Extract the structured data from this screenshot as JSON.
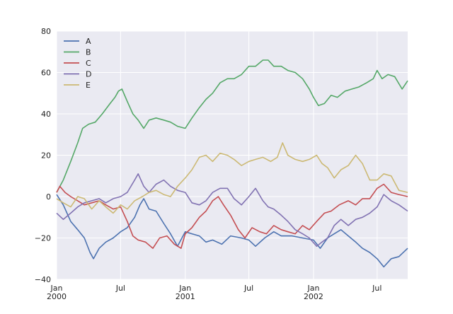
{
  "chart_data": {
    "type": "line",
    "title": "",
    "xlabel": "",
    "ylabel": "",
    "ylim": [
      -40,
      80
    ],
    "xlim": [
      "2000-01-01",
      "2002-09-26"
    ],
    "grid": true,
    "legend_position": "top-left",
    "background": "#EAEAF2",
    "y_ticks": [
      -40,
      -20,
      0,
      20,
      40,
      60,
      80
    ],
    "y_tick_labels": [
      "−40",
      "−20",
      "0",
      "20",
      "40",
      "60",
      "80"
    ],
    "x_ticks": [
      {
        "date": "2000-01-01",
        "label": "Jan",
        "sublabel": "2000"
      },
      {
        "date": "2000-07-01",
        "label": "Jul",
        "sublabel": ""
      },
      {
        "date": "2001-01-01",
        "label": "Jan",
        "sublabel": "2001"
      },
      {
        "date": "2001-07-01",
        "label": "Jul",
        "sublabel": ""
      },
      {
        "date": "2002-01-01",
        "label": "Jan",
        "sublabel": "2002"
      },
      {
        "date": "2002-07-01",
        "label": "Jul",
        "sublabel": ""
      }
    ],
    "series": [
      {
        "name": "A",
        "color": "#4C72B0",
        "points": [
          [
            "2000-01-01",
            1
          ],
          [
            "2000-01-20",
            -4
          ],
          [
            "2000-02-10",
            -12
          ],
          [
            "2000-03-01",
            -16
          ],
          [
            "2000-03-20",
            -20
          ],
          [
            "2000-04-05",
            -27
          ],
          [
            "2000-04-15",
            -30
          ],
          [
            "2000-05-01",
            -25
          ],
          [
            "2000-05-20",
            -22
          ],
          [
            "2000-06-10",
            -20
          ],
          [
            "2000-07-01",
            -17
          ],
          [
            "2000-07-20",
            -15
          ],
          [
            "2000-08-10",
            -10
          ],
          [
            "2000-08-25",
            -4
          ],
          [
            "2000-09-05",
            -1
          ],
          [
            "2000-09-20",
            -6
          ],
          [
            "2000-10-10",
            -7
          ],
          [
            "2000-11-01",
            -13
          ],
          [
            "2000-11-20",
            -18
          ],
          [
            "2000-12-10",
            -24
          ],
          [
            "2001-01-01",
            -17
          ],
          [
            "2001-01-20",
            -18
          ],
          [
            "2001-02-10",
            -19
          ],
          [
            "2001-03-01",
            -22
          ],
          [
            "2001-03-20",
            -21
          ],
          [
            "2001-04-15",
            -23
          ],
          [
            "2001-05-10",
            -19
          ],
          [
            "2001-06-10",
            -20
          ],
          [
            "2001-07-01",
            -21
          ],
          [
            "2001-07-20",
            -24
          ],
          [
            "2001-08-15",
            -20
          ],
          [
            "2001-09-10",
            -17
          ],
          [
            "2001-10-01",
            -19
          ],
          [
            "2001-11-01",
            -19
          ],
          [
            "2001-12-01",
            -20
          ],
          [
            "2002-01-01",
            -21
          ],
          [
            "2002-01-20",
            -25
          ],
          [
            "2002-02-10",
            -20
          ],
          [
            "2002-03-01",
            -18
          ],
          [
            "2002-03-20",
            -16
          ],
          [
            "2002-04-10",
            -19
          ],
          [
            "2002-05-01",
            -22
          ],
          [
            "2002-05-20",
            -25
          ],
          [
            "2002-06-10",
            -27
          ],
          [
            "2002-07-01",
            -30
          ],
          [
            "2002-07-20",
            -34
          ],
          [
            "2002-08-10",
            -30
          ],
          [
            "2002-09-01",
            -29
          ],
          [
            "2002-09-26",
            -25
          ]
        ]
      },
      {
        "name": "B",
        "color": "#55A868",
        "points": [
          [
            "2000-01-01",
            2
          ],
          [
            "2000-01-20",
            8
          ],
          [
            "2000-02-10",
            17
          ],
          [
            "2000-03-01",
            26
          ],
          [
            "2000-03-15",
            33
          ],
          [
            "2000-04-01",
            35
          ],
          [
            "2000-04-20",
            36
          ],
          [
            "2000-05-10",
            40
          ],
          [
            "2000-06-01",
            45
          ],
          [
            "2000-06-15",
            48
          ],
          [
            "2000-06-25",
            51
          ],
          [
            "2000-07-05",
            52
          ],
          [
            "2000-07-20",
            46
          ],
          [
            "2000-08-05",
            40
          ],
          [
            "2000-08-20",
            37
          ],
          [
            "2000-09-05",
            33
          ],
          [
            "2000-09-20",
            37
          ],
          [
            "2000-10-10",
            38
          ],
          [
            "2000-11-01",
            37
          ],
          [
            "2000-11-20",
            36
          ],
          [
            "2000-12-10",
            34
          ],
          [
            "2001-01-01",
            33
          ],
          [
            "2001-01-20",
            38
          ],
          [
            "2001-02-10",
            43
          ],
          [
            "2001-03-01",
            47
          ],
          [
            "2001-03-20",
            50
          ],
          [
            "2001-04-10",
            55
          ],
          [
            "2001-05-01",
            57
          ],
          [
            "2001-05-20",
            57
          ],
          [
            "2001-06-10",
            59
          ],
          [
            "2001-07-01",
            63
          ],
          [
            "2001-07-20",
            63
          ],
          [
            "2001-08-10",
            66
          ],
          [
            "2001-08-25",
            66
          ],
          [
            "2001-09-10",
            63
          ],
          [
            "2001-10-01",
            63
          ],
          [
            "2001-10-20",
            61
          ],
          [
            "2001-11-10",
            60
          ],
          [
            "2001-12-01",
            57
          ],
          [
            "2001-12-20",
            52
          ],
          [
            "2002-01-01",
            48
          ],
          [
            "2002-01-15",
            44
          ],
          [
            "2002-02-01",
            45
          ],
          [
            "2002-02-20",
            49
          ],
          [
            "2002-03-10",
            48
          ],
          [
            "2002-04-01",
            51
          ],
          [
            "2002-04-20",
            52
          ],
          [
            "2002-05-10",
            53
          ],
          [
            "2002-06-01",
            55
          ],
          [
            "2002-06-20",
            57
          ],
          [
            "2002-07-01",
            61
          ],
          [
            "2002-07-15",
            57
          ],
          [
            "2002-08-01",
            59
          ],
          [
            "2002-08-20",
            58
          ],
          [
            "2002-09-10",
            52
          ],
          [
            "2002-09-26",
            56
          ]
        ]
      },
      {
        "name": "C",
        "color": "#C44E52",
        "points": [
          [
            "2000-01-01",
            2
          ],
          [
            "2000-01-10",
            5
          ],
          [
            "2000-01-25",
            2
          ],
          [
            "2000-02-10",
            0
          ],
          [
            "2000-03-01",
            -2
          ],
          [
            "2000-03-20",
            -4
          ],
          [
            "2000-04-10",
            -3
          ],
          [
            "2000-05-01",
            -2
          ],
          [
            "2000-05-20",
            -4
          ],
          [
            "2000-06-10",
            -6
          ],
          [
            "2000-07-01",
            -5
          ],
          [
            "2000-07-20",
            -12
          ],
          [
            "2000-08-05",
            -19
          ],
          [
            "2000-08-20",
            -21
          ],
          [
            "2000-09-10",
            -22
          ],
          [
            "2000-10-01",
            -25
          ],
          [
            "2000-10-20",
            -20
          ],
          [
            "2000-11-10",
            -19
          ],
          [
            "2000-12-01",
            -23
          ],
          [
            "2000-12-20",
            -25
          ],
          [
            "2001-01-01",
            -18
          ],
          [
            "2001-01-20",
            -15
          ],
          [
            "2001-02-10",
            -10
          ],
          [
            "2001-03-01",
            -7
          ],
          [
            "2001-03-20",
            -2
          ],
          [
            "2001-04-05",
            0
          ],
          [
            "2001-04-20",
            -4
          ],
          [
            "2001-05-10",
            -9
          ],
          [
            "2001-06-01",
            -16
          ],
          [
            "2001-06-20",
            -20
          ],
          [
            "2001-07-10",
            -15
          ],
          [
            "2001-08-01",
            -17
          ],
          [
            "2001-08-20",
            -18
          ],
          [
            "2001-09-10",
            -14
          ],
          [
            "2001-10-01",
            -16
          ],
          [
            "2001-10-20",
            -17
          ],
          [
            "2001-11-10",
            -18
          ],
          [
            "2001-12-01",
            -14
          ],
          [
            "2001-12-20",
            -16
          ],
          [
            "2002-01-10",
            -12
          ],
          [
            "2002-02-01",
            -8
          ],
          [
            "2002-02-20",
            -7
          ],
          [
            "2002-03-15",
            -4
          ],
          [
            "2002-04-10",
            -2
          ],
          [
            "2002-05-01",
            -4
          ],
          [
            "2002-05-20",
            -1
          ],
          [
            "2002-06-10",
            -1
          ],
          [
            "2002-07-01",
            4
          ],
          [
            "2002-07-20",
            6
          ],
          [
            "2002-08-10",
            2
          ],
          [
            "2002-09-01",
            1
          ],
          [
            "2002-09-26",
            0
          ]
        ]
      },
      {
        "name": "D",
        "color": "#8172B2",
        "points": [
          [
            "2000-01-01",
            -8
          ],
          [
            "2000-01-20",
            -11
          ],
          [
            "2000-02-10",
            -8
          ],
          [
            "2000-03-01",
            -5
          ],
          [
            "2000-03-20",
            -3
          ],
          [
            "2000-04-10",
            -2
          ],
          [
            "2000-05-01",
            -1
          ],
          [
            "2000-05-20",
            -3
          ],
          [
            "2000-06-10",
            -1
          ],
          [
            "2000-07-01",
            0
          ],
          [
            "2000-07-20",
            2
          ],
          [
            "2000-08-10",
            8
          ],
          [
            "2000-08-20",
            11
          ],
          [
            "2000-09-05",
            5
          ],
          [
            "2000-09-20",
            2
          ],
          [
            "2000-10-10",
            6
          ],
          [
            "2000-11-01",
            8
          ],
          [
            "2000-11-20",
            5
          ],
          [
            "2000-12-10",
            3
          ],
          [
            "2001-01-01",
            2
          ],
          [
            "2001-01-20",
            -3
          ],
          [
            "2001-02-10",
            -4
          ],
          [
            "2001-03-01",
            -2
          ],
          [
            "2001-03-20",
            2
          ],
          [
            "2001-04-10",
            4
          ],
          [
            "2001-05-01",
            4
          ],
          [
            "2001-05-20",
            -1
          ],
          [
            "2001-06-10",
            -4
          ],
          [
            "2001-07-01",
            0
          ],
          [
            "2001-07-20",
            4
          ],
          [
            "2001-08-10",
            -2
          ],
          [
            "2001-08-25",
            -5
          ],
          [
            "2001-09-10",
            -6
          ],
          [
            "2001-10-01",
            -9
          ],
          [
            "2001-10-20",
            -12
          ],
          [
            "2001-11-10",
            -16
          ],
          [
            "2001-12-01",
            -18
          ],
          [
            "2001-12-20",
            -20
          ],
          [
            "2002-01-10",
            -24
          ],
          [
            "2002-01-25",
            -22
          ],
          [
            "2002-02-10",
            -20
          ],
          [
            "2002-03-01",
            -14
          ],
          [
            "2002-03-20",
            -11
          ],
          [
            "2002-04-10",
            -14
          ],
          [
            "2002-05-01",
            -11
          ],
          [
            "2002-05-20",
            -10
          ],
          [
            "2002-06-10",
            -8
          ],
          [
            "2002-07-01",
            -5
          ],
          [
            "2002-07-20",
            1
          ],
          [
            "2002-08-10",
            -2
          ],
          [
            "2002-09-01",
            -4
          ],
          [
            "2002-09-26",
            -7
          ]
        ]
      },
      {
        "name": "E",
        "color": "#CCB974",
        "points": [
          [
            "2000-01-01",
            -1
          ],
          [
            "2000-01-20",
            -3
          ],
          [
            "2000-02-10",
            -5
          ],
          [
            "2000-03-01",
            0
          ],
          [
            "2000-03-20",
            -1
          ],
          [
            "2000-04-10",
            -6
          ],
          [
            "2000-05-01",
            -2
          ],
          [
            "2000-05-20",
            -5
          ],
          [
            "2000-06-10",
            -8
          ],
          [
            "2000-07-01",
            -4
          ],
          [
            "2000-07-20",
            -6
          ],
          [
            "2000-08-10",
            -2
          ],
          [
            "2000-09-01",
            0
          ],
          [
            "2000-09-20",
            2
          ],
          [
            "2000-10-10",
            3
          ],
          [
            "2000-11-01",
            1
          ],
          [
            "2000-11-20",
            0
          ],
          [
            "2000-12-10",
            5
          ],
          [
            "2001-01-01",
            9
          ],
          [
            "2001-01-20",
            13
          ],
          [
            "2001-02-10",
            19
          ],
          [
            "2001-03-01",
            20
          ],
          [
            "2001-03-20",
            17
          ],
          [
            "2001-04-10",
            21
          ],
          [
            "2001-05-01",
            20
          ],
          [
            "2001-05-20",
            18
          ],
          [
            "2001-06-10",
            15
          ],
          [
            "2001-07-01",
            17
          ],
          [
            "2001-07-20",
            18
          ],
          [
            "2001-08-10",
            19
          ],
          [
            "2001-09-01",
            17
          ],
          [
            "2001-09-20",
            19
          ],
          [
            "2001-10-05",
            26
          ],
          [
            "2001-10-20",
            20
          ],
          [
            "2001-11-10",
            18
          ],
          [
            "2001-12-01",
            17
          ],
          [
            "2001-12-20",
            18
          ],
          [
            "2002-01-10",
            20
          ],
          [
            "2002-01-25",
            16
          ],
          [
            "2002-02-10",
            14
          ],
          [
            "2002-03-01",
            9
          ],
          [
            "2002-03-20",
            13
          ],
          [
            "2002-04-10",
            15
          ],
          [
            "2002-05-01",
            20
          ],
          [
            "2002-05-20",
            16
          ],
          [
            "2002-06-10",
            8
          ],
          [
            "2002-07-01",
            8
          ],
          [
            "2002-07-20",
            11
          ],
          [
            "2002-08-10",
            10
          ],
          [
            "2002-09-01",
            3
          ],
          [
            "2002-09-26",
            2
          ]
        ]
      }
    ]
  }
}
